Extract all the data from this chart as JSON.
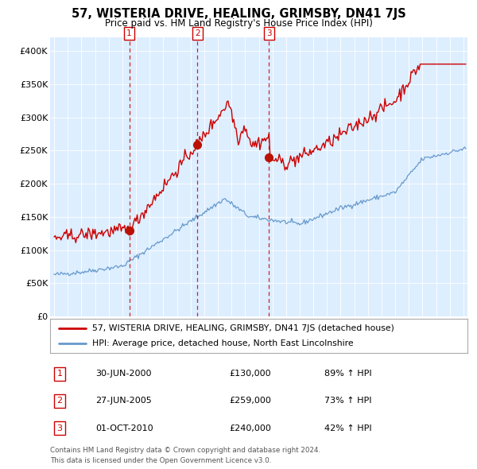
{
  "title": "57, WISTERIA DRIVE, HEALING, GRIMSBY, DN41 7JS",
  "subtitle": "Price paid vs. HM Land Registry's House Price Index (HPI)",
  "legend_line1": "57, WISTERIA DRIVE, HEALING, GRIMSBY, DN41 7JS (detached house)",
  "legend_line2": "HPI: Average price, detached house, North East Lincolnshire",
  "footer1": "Contains HM Land Registry data © Crown copyright and database right 2024.",
  "footer2": "This data is licensed under the Open Government Licence v3.0.",
  "sale_color": "#cc0000",
  "hpi_color": "#6699cc",
  "background_color": "#ddeeff",
  "sale_points": [
    {
      "label": "1",
      "date_num": 2000.5,
      "value": 130000
    },
    {
      "label": "2",
      "date_num": 2005.5,
      "value": 259000
    },
    {
      "label": "3",
      "date_num": 2010.75,
      "value": 240000
    }
  ],
  "sale_dates": [
    "30-JUN-2000",
    "27-JUN-2005",
    "01-OCT-2010"
  ],
  "sale_values": [
    "£130,000",
    "£259,000",
    "£240,000"
  ],
  "sale_hpi": [
    "89% ↑ HPI",
    "73% ↑ HPI",
    "42% ↑ HPI"
  ],
  "ylim": [
    0,
    420000
  ],
  "yticks": [
    0,
    50000,
    100000,
    150000,
    200000,
    250000,
    300000,
    350000,
    400000
  ],
  "ytick_labels": [
    "£0",
    "£50K",
    "£100K",
    "£150K",
    "£200K",
    "£250K",
    "£300K",
    "£350K",
    "£400K"
  ],
  "xlim_start": 1994.7,
  "xlim_end": 2025.3
}
